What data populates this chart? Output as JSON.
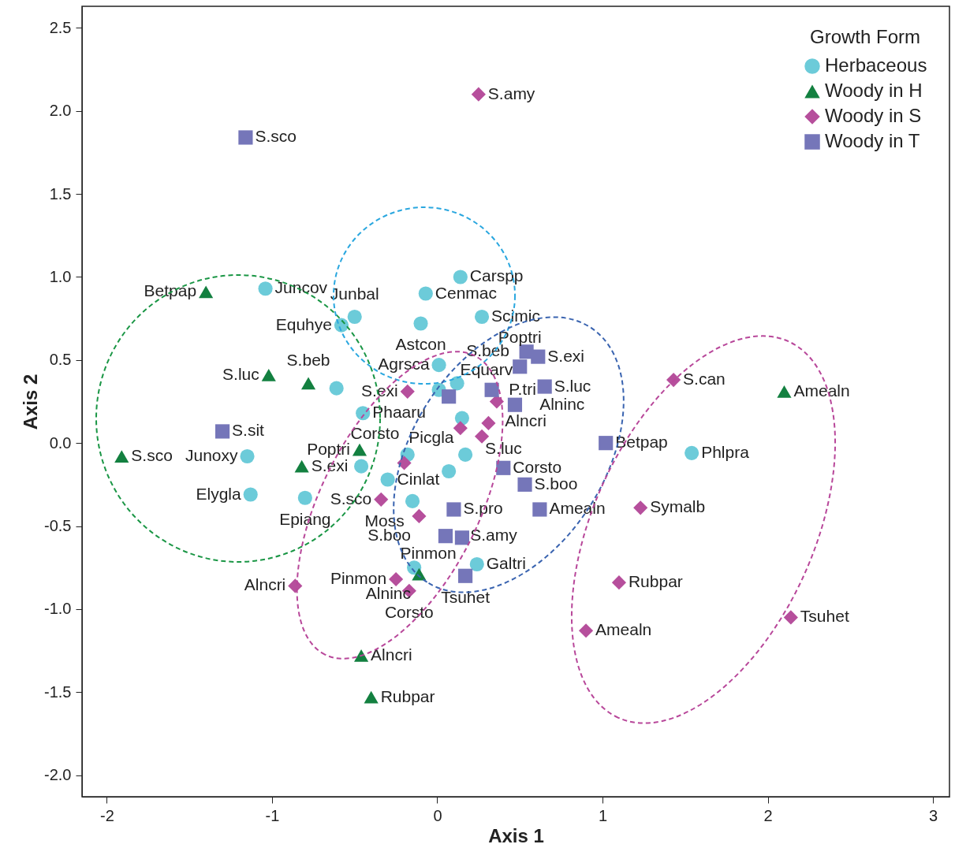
{
  "chart_data": {
    "type": "scatter",
    "xlabel": "Axis 1",
    "ylabel": "Axis 2",
    "legend_title": "Growth Form",
    "legend": "top right",
    "grid": false,
    "xlim": [
      -2.15,
      3.1
    ],
    "ylim": [
      -2.13,
      2.63
    ],
    "xticks": [
      -2,
      -1,
      0,
      1,
      2,
      3
    ],
    "yticks": [
      {
        "value": -2,
        "label": "-2.0"
      },
      -1.5,
      {
        "value": -1,
        "label": "-1.0"
      },
      -0.5,
      {
        "value": 0,
        "label": "0.0"
      },
      0.5,
      {
        "value": 1,
        "label": "1.0"
      },
      1.5,
      {
        "value": 2,
        "label": "2.0"
      },
      2.5
    ],
    "series": [
      {
        "name": "Herbaceous",
        "color": "#6ccbd9",
        "marker": "circle",
        "x": [
          -1.04,
          0.14,
          -0.07,
          0.27,
          -0.5,
          -0.58,
          -0.1,
          0.01,
          0.12,
          0.01,
          -0.61,
          -0.45,
          0.15,
          -0.18,
          -0.46,
          -0.3,
          0.07,
          0.17,
          -0.15,
          -0.8,
          -0.14,
          0.24,
          -1.15,
          -1.13,
          1.54
        ],
        "values": [
          0.93,
          1.0,
          0.9,
          0.76,
          0.76,
          0.71,
          0.72,
          0.47,
          0.36,
          0.32,
          0.33,
          0.18,
          0.15,
          -0.07,
          -0.14,
          -0.22,
          -0.17,
          -0.07,
          -0.35,
          -0.33,
          -0.75,
          -0.73,
          -0.08,
          -0.31,
          -0.06
        ]
      },
      {
        "name": "Woody in H",
        "color": "#138040",
        "marker": "triangle",
        "x": [
          -1.4,
          -1.02,
          -0.78,
          -1.91,
          -0.82,
          -0.47,
          -0.11,
          -0.46,
          -0.4,
          2.1
        ],
        "values": [
          0.91,
          0.41,
          0.36,
          -0.08,
          -0.14,
          -0.04,
          -0.79,
          -1.28,
          -1.53,
          0.31
        ]
      },
      {
        "name": "Woody in S",
        "color": "#b64f9c",
        "marker": "diamond",
        "x": [
          0.25,
          -0.18,
          0.14,
          0.31,
          0.27,
          0.36,
          -0.2,
          -0.34,
          -0.11,
          -0.25,
          -0.17,
          -0.86,
          1.43,
          1.23,
          1.1,
          0.9,
          2.14
        ],
        "values": [
          2.1,
          0.31,
          0.09,
          0.12,
          0.04,
          0.25,
          -0.12,
          -0.34,
          -0.44,
          -0.82,
          -0.89,
          -0.86,
          0.38,
          -0.39,
          -0.84,
          -1.13,
          -1.05
        ]
      },
      {
        "name": "Woody in T",
        "color": "#7576b9",
        "marker": "square",
        "x": [
          -1.16,
          -1.3,
          0.54,
          0.61,
          0.5,
          0.07,
          0.33,
          0.65,
          0.47,
          1.02,
          0.4,
          0.53,
          0.1,
          0.62,
          0.05,
          0.15,
          0.17
        ],
        "values": [
          1.84,
          0.07,
          0.55,
          0.52,
          0.46,
          0.28,
          0.32,
          0.34,
          0.23,
          0.0,
          -0.15,
          -0.25,
          -0.4,
          -0.4,
          -0.56,
          -0.57,
          -0.8
        ]
      }
    ],
    "annotations": [
      {
        "text": "S.amy",
        "x": 0.25,
        "y": 2.1
      },
      {
        "text": "S.sco",
        "x": -1.16,
        "y": 1.84
      },
      {
        "text": "Carspp",
        "x": 0.14,
        "y": 1.0
      },
      {
        "text": "Cenmac",
        "x": -0.07,
        "y": 0.9
      },
      {
        "text": "Juncov",
        "x": -1.04,
        "y": 0.93
      },
      {
        "text": "Betpap",
        "x": -1.4,
        "y": 0.91
      },
      {
        "text": "Junbal",
        "x": -0.5,
        "y": 0.76
      },
      {
        "text": "Scimic",
        "x": 0.27,
        "y": 0.76
      },
      {
        "text": "Equhye",
        "x": -0.58,
        "y": 0.71
      },
      {
        "text": "Astcon",
        "x": -0.1,
        "y": 0.72
      },
      {
        "text": "S.beb",
        "x": 0.54,
        "y": 0.55
      },
      {
        "text": "Agrsca",
        "x": 0.01,
        "y": 0.47
      },
      {
        "text": "Equarv",
        "x": 0.12,
        "y": 0.36
      },
      {
        "text": "S.exi",
        "x": 0.61,
        "y": 0.52
      },
      {
        "text": "S.can",
        "x": 1.43,
        "y": 0.38
      },
      {
        "text": "Amealn",
        "x": 2.1,
        "y": 0.31
      },
      {
        "text": "S.luc",
        "x": -1.02,
        "y": 0.41
      },
      {
        "text": "S.beb",
        "x": -0.78,
        "y": 0.36
      },
      {
        "text": "S.exi",
        "x": -0.18,
        "y": 0.31
      },
      {
        "text": "S.luc",
        "x": 0.65,
        "y": 0.34
      },
      {
        "text": "S.sit",
        "x": -1.3,
        "y": 0.07
      },
      {
        "text": "P.tri",
        "x": 0.33,
        "y": 0.32
      },
      {
        "text": "Poptri",
        "x": 0.5,
        "y": 0.46
      },
      {
        "text": "Phaaru",
        "x": -0.45,
        "y": 0.18
      },
      {
        "text": "Alncri",
        "x": 0.36,
        "y": 0.25
      },
      {
        "text": "Alninc",
        "x": 0.47,
        "y": 0.23
      },
      {
        "text": "Picgla",
        "x": 0.15,
        "y": 0.15
      },
      {
        "text": "S.luc",
        "x": 0.27,
        "y": 0.04
      },
      {
        "text": "Betpap",
        "x": 1.02,
        "y": 0.0
      },
      {
        "text": "S.sco",
        "x": -1.91,
        "y": -0.08
      },
      {
        "text": "Poptri",
        "x": -0.47,
        "y": -0.04
      },
      {
        "text": "Corsto",
        "x": -0.18,
        "y": -0.07
      },
      {
        "text": "Junoxy",
        "x": -1.15,
        "y": -0.08
      },
      {
        "text": "S.exi",
        "x": -0.82,
        "y": -0.14
      },
      {
        "text": "Corsto",
        "x": 0.4,
        "y": -0.15
      },
      {
        "text": "Phlpra",
        "x": 1.54,
        "y": -0.06
      },
      {
        "text": "S.boo",
        "x": 0.53,
        "y": -0.25
      },
      {
        "text": "Cinlat",
        "x": -0.3,
        "y": -0.22
      },
      {
        "text": "Moss",
        "x": -0.15,
        "y": -0.35
      },
      {
        "text": "Elygla",
        "x": -1.13,
        "y": -0.31
      },
      {
        "text": "S.sco",
        "x": -0.34,
        "y": -0.34
      },
      {
        "text": "S.pro",
        "x": 0.1,
        "y": -0.4
      },
      {
        "text": "Amealn",
        "x": 0.62,
        "y": -0.4
      },
      {
        "text": "Symalb",
        "x": 1.23,
        "y": -0.39
      },
      {
        "text": "Epiang",
        "x": -0.8,
        "y": -0.33
      },
      {
        "text": "S.boo",
        "x": -0.11,
        "y": -0.44
      },
      {
        "text": "S.amy",
        "x": 0.05,
        "y": -0.56
      },
      {
        "text": "Pinmon",
        "x": 0.15,
        "y": -0.57
      },
      {
        "text": "Galtri",
        "x": 0.24,
        "y": -0.73
      },
      {
        "text": "Rubpar",
        "x": 1.1,
        "y": -0.84
      },
      {
        "text": "Pinmon",
        "x": -0.25,
        "y": -0.82
      },
      {
        "text": "Alncri",
        "x": -0.86,
        "y": -0.86
      },
      {
        "text": "Tsuhet",
        "x": 0.17,
        "y": -0.8
      },
      {
        "text": "Corsto",
        "x": -0.17,
        "y": -0.89
      },
      {
        "text": "Tsuhet",
        "x": 2.14,
        "y": -1.05
      },
      {
        "text": "Amealn",
        "x": 0.9,
        "y": -1.13
      },
      {
        "text": "Alninc",
        "x": -0.11,
        "y": -0.79
      },
      {
        "text": "Alncri",
        "x": -0.46,
        "y": -1.28
      },
      {
        "text": "Rubpar",
        "x": -0.4,
        "y": -1.53
      }
    ]
  }
}
